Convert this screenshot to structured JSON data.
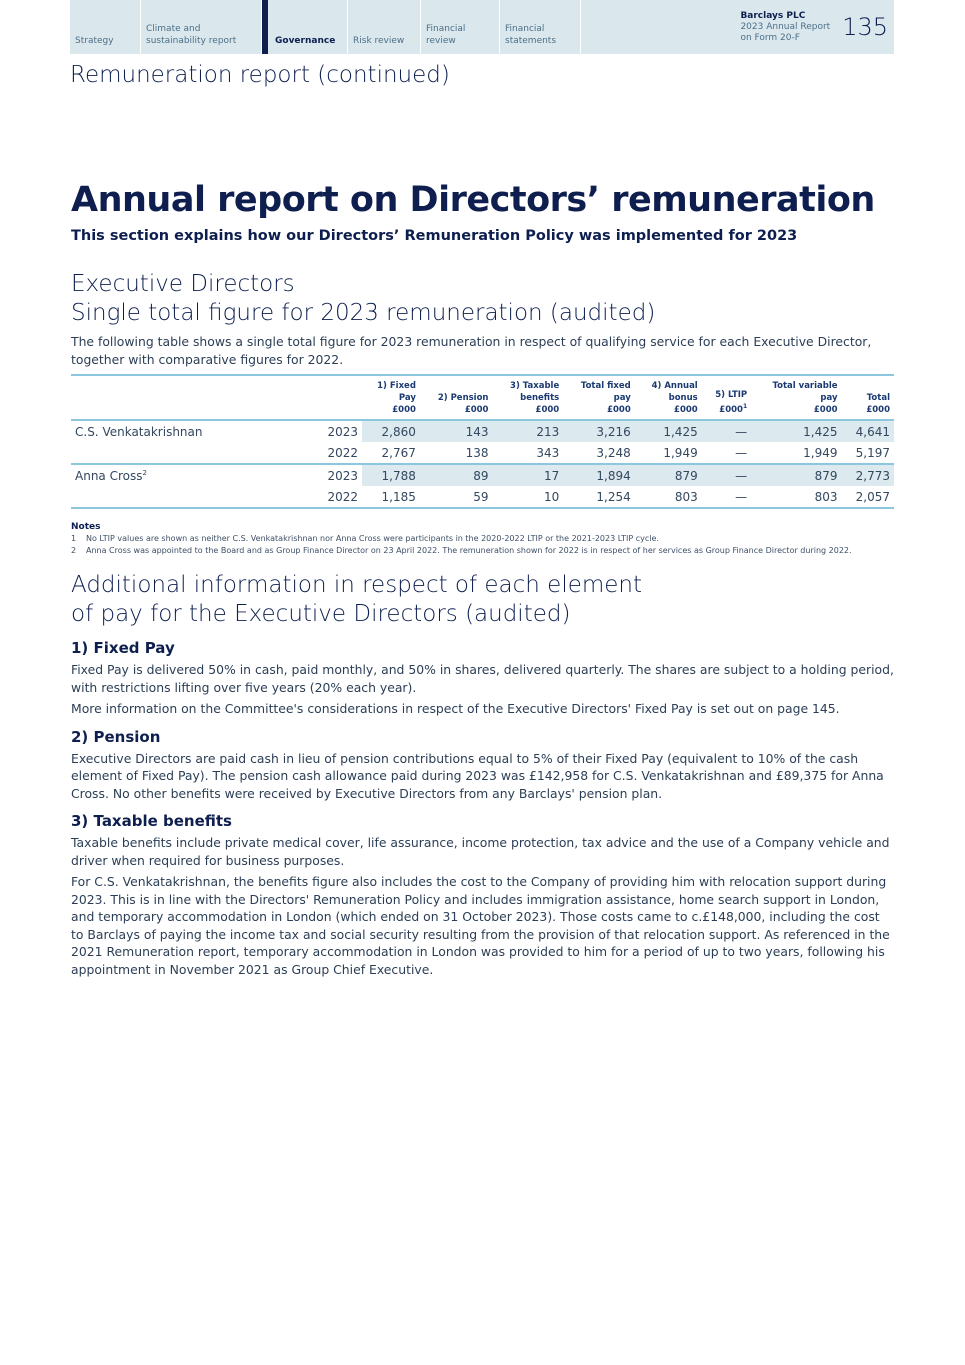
{
  "nav": {
    "tabs": [
      {
        "label": "Strategy"
      },
      {
        "label": "Climate and sustainability report"
      },
      {
        "label": "Governance",
        "active": true
      },
      {
        "label": "Risk review"
      },
      {
        "label": "Financial review"
      },
      {
        "label": "Financial statements"
      }
    ],
    "brand": "Barclays PLC",
    "report_line1": "2023 Annual Report",
    "report_line2": "on Form 20-F",
    "page": "135"
  },
  "section_title": "Remuneration report (continued)",
  "title": "Annual report on Directors’ remuneration",
  "subtitle": "This section explains how our Directors’ Remuneration Policy was implemented for 2023",
  "exec": {
    "heading1": "Executive Directors",
    "heading2": "Single total figure for 2023 remuneration (audited)",
    "intro": "The following table shows a single total figure for 2023 remuneration in respect of qualifying service for each Executive Director, together with comparative figures for 2022."
  },
  "table": {
    "headers": [
      "1) Fixed Pay £000",
      "2) Pension £000",
      "3) Taxable benefits £000",
      "Total fixed pay £000",
      "4) Annual bonus £000",
      "5) LTIP £000¹",
      "Total variable pay £000",
      "Total £000"
    ],
    "rows": [
      {
        "name": "C.S. Venkatakrishnan",
        "year": "2023",
        "values": [
          "2,860",
          "143",
          "213",
          "3,216",
          "1,425",
          "—",
          "1,425",
          "4,641"
        ]
      },
      {
        "name": "",
        "year": "2022",
        "values": [
          "2,767",
          "138",
          "343",
          "3,248",
          "1,949",
          "—",
          "1,949",
          "5,197"
        ]
      },
      {
        "name": "Anna Cross²",
        "year": "2023",
        "values": [
          "1,788",
          "89",
          "17",
          "1,894",
          "879",
          "—",
          "879",
          "2,773"
        ]
      },
      {
        "name": "",
        "year": "2022",
        "values": [
          "1,185",
          "59",
          "10",
          "1,254",
          "803",
          "—",
          "803",
          "2,057"
        ]
      }
    ]
  },
  "notes": {
    "title": "Notes",
    "items": [
      {
        "num": "1",
        "text": "No LTIP values are shown as neither C.S. Venkatakrishnan nor Anna Cross were participants in the 2020-2022 LTIP or the 2021-2023 LTIP cycle."
      },
      {
        "num": "2",
        "text": "Anna Cross was appointed to the Board and as Group Finance Director on 23 April 2022. The remuneration shown for 2022 is in respect of her services as Group Finance Director during 2022."
      }
    ]
  },
  "additional": {
    "heading1": "Additional information in respect of each element",
    "heading2": "of pay for the Executive Directors (audited)",
    "sections": [
      {
        "title": "1) Fixed Pay",
        "paras": [
          "Fixed Pay is delivered 50% in cash, paid monthly, and 50% in shares, delivered quarterly. The shares are subject to a holding period, with restrictions lifting over five years (20% each year).",
          "More information on the Committee's considerations in respect of the Executive Directors' Fixed Pay is set out on page 145."
        ]
      },
      {
        "title": "2) Pension",
        "paras": [
          "Executive Directors are paid cash in lieu of pension contributions equal to 5% of their Fixed Pay (equivalent to 10% of the cash element of Fixed Pay). The pension cash allowance paid during 2023 was £142,958 for C.S. Venkatakrishnan and £89,375 for Anna Cross. No other benefits were received by Executive Directors from any Barclays' pension plan."
        ]
      },
      {
        "title": "3) Taxable benefits",
        "paras": [
          "Taxable benefits include private medical cover, life assurance, income protection, tax advice and the use of a Company vehicle and driver when required for business purposes.",
          "For C.S. Venkatakrishnan, the benefits figure also includes the cost to the Company of providing him with relocation support during 2023. This is in line with the Directors' Remuneration Policy and includes immigration assistance, home search support in London, and temporary accommodation in London (which ended on 31 October 2023). Those costs came to c.£148,000, including the cost to Barclays of paying the income tax and social security resulting from the provision of that relocation support. As referenced in the 2021 Remuneration report, temporary accommodation in London was provided to him for a period of up to two years, following his appointment in November 2021 as Group Chief Executive."
        ]
      }
    ]
  }
}
